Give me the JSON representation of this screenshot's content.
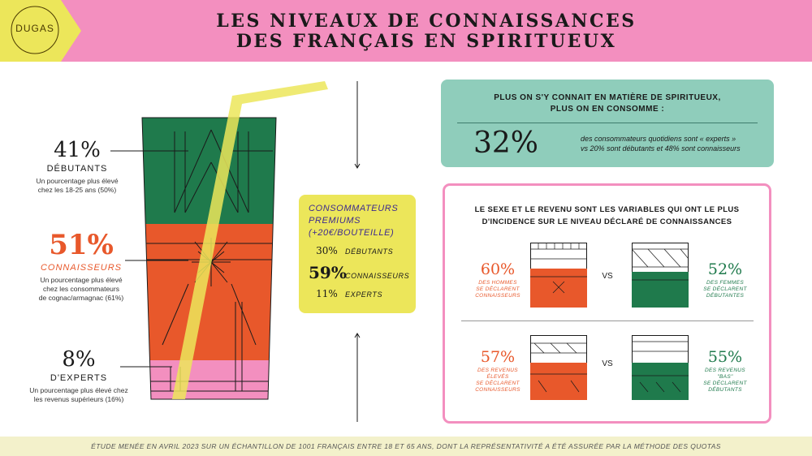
{
  "brand": {
    "name": "DUGAS"
  },
  "title": {
    "line1": "LES NIVEAUX DE CONNAISSANCES",
    "line2": "DES FRANÇAIS EN SPIRITUEUX"
  },
  "levels": [
    {
      "pct": "41%",
      "label": "DÉBUTANTS",
      "desc_line1": "Un pourcentage plus élevé",
      "desc_line2": "chez les 18-25 ans (50%)",
      "desc_line3": ""
    },
    {
      "pct": "51%",
      "label": "CONNAISSEURS",
      "desc_line1": "Un pourcentage plus élevé",
      "desc_line2": "chez les consommateurs",
      "desc_line3": "de cognac/armagnac (61%)"
    },
    {
      "pct": "8%",
      "label": "D'EXPERTS",
      "desc_line1": "Un pourcentage plus élevé chez",
      "desc_line2": "les revenus supérieurs (16%)",
      "desc_line3": ""
    }
  ],
  "glass_shares": {
    "debutants": 41,
    "connaisseurs": 51,
    "experts": 8
  },
  "premium": {
    "title_line1": "CONSOMMATEURS",
    "title_line2": "PREMIUMS",
    "title_line3": "(+20€/BOUTEILLE)",
    "rows": [
      {
        "value": "30%",
        "label": "DÉBUTANTS"
      },
      {
        "value": "59%",
        "label": "CONNAISSEURS"
      },
      {
        "value": "11%",
        "label": "EXPERTS"
      }
    ]
  },
  "consumption": {
    "heading_line1": "PLUS ON S'Y CONNAIT EN MATIÈRE DE SPIRITUEUX,",
    "heading_line2": "PLUS ON EN CONSOMME :",
    "pct": "32%",
    "line1": "des consommateurs quotidiens sont « experts »",
    "line2": "vs 20% sont débutants et 48% sont connaisseurs"
  },
  "variables": {
    "heading_line1": "LE SEXE ET LE REVENU SONT LES VARIABLES QUI ONT LE PLUS",
    "heading_line2": "D'INCIDENCE SUR LE NIVEAU DÉCLARÉ DE CONNAISSANCES",
    "vs_label": "VS",
    "comparisons": [
      {
        "left": {
          "pct": "60%",
          "l1": "DES HOMMES",
          "l2": "SE DÉCLARENT",
          "l3": "CONNAISSEURS",
          "l4": ""
        },
        "right": {
          "pct": "52%",
          "l1": "DES FEMMES",
          "l2": "SE DÉCLARENT",
          "l3": "DÉBUTANTES",
          "l4": ""
        }
      },
      {
        "left": {
          "pct": "57%",
          "l1": "DES REVENUS",
          "l2": "ÉLEVÉS",
          "l3": "SE DÉCLARENT",
          "l4": "CONNAISSEURS"
        },
        "right": {
          "pct": "55%",
          "l1": "DES REVENUS",
          "l2": "\"BAS\"",
          "l3": "SE DÉCLARENT",
          "l4": "DÉBUTANTS"
        }
      }
    ]
  },
  "footer": {
    "note": "ÉTUDE MENÉE EN AVRIL 2023 SUR UN ÉCHANTILLON DE 1001 FRANÇAIS ENTRE 18 ET 65 ANS, DONT LA REPRÉSENTATIVITÉ A ÉTÉ ASSURÉE PAR LA MÉTHODE DES QUOTAS"
  },
  "colors": {
    "pink": "#f38fbf",
    "yellow": "#ece65a",
    "green": "#1f7a4c",
    "orange": "#e8582b",
    "teal": "#8fcdbb",
    "cream": "#f3f1cb"
  }
}
